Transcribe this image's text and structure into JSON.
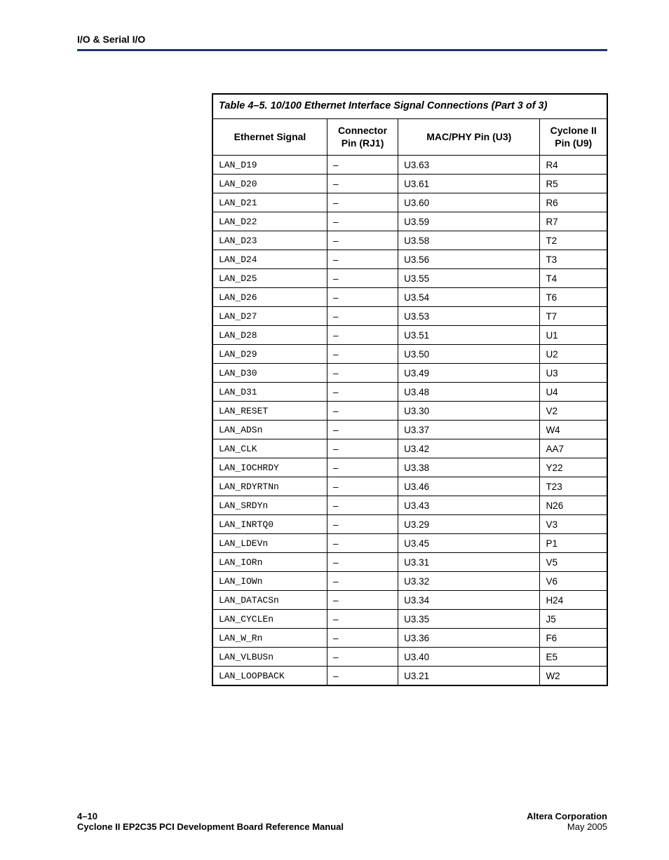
{
  "header": {
    "section": "I/O & Serial I/O"
  },
  "table": {
    "title": "Table 4–5. 10/100 Ethernet Interface Signal Connections  (Part 3 of 3)",
    "columns": {
      "c0": "Ethernet Signal",
      "c1": "Connector Pin (RJ1)",
      "c2": "MAC/PHY Pin (U3)",
      "c3": "Cyclone II Pin (U9)"
    },
    "widths": {
      "c0": "29%",
      "c1": "18%",
      "c2": "36%",
      "c3": "17%"
    },
    "rows": [
      {
        "sig": "LAN_D19",
        "conn": "–",
        "mac": "U3.63",
        "cyc": "R4"
      },
      {
        "sig": "LAN_D20",
        "conn": "–",
        "mac": "U3.61",
        "cyc": "R5"
      },
      {
        "sig": "LAN_D21",
        "conn": "–",
        "mac": "U3.60",
        "cyc": "R6"
      },
      {
        "sig": "LAN_D22",
        "conn": "–",
        "mac": "U3.59",
        "cyc": "R7"
      },
      {
        "sig": "LAN_D23",
        "conn": "–",
        "mac": "U3.58",
        "cyc": "T2"
      },
      {
        "sig": "LAN_D24",
        "conn": "–",
        "mac": "U3.56",
        "cyc": "T3"
      },
      {
        "sig": "LAN_D25",
        "conn": "–",
        "mac": "U3.55",
        "cyc": "T4"
      },
      {
        "sig": "LAN_D26",
        "conn": "–",
        "mac": "U3.54",
        "cyc": "T6"
      },
      {
        "sig": "LAN_D27",
        "conn": "–",
        "mac": "U3.53",
        "cyc": "T7"
      },
      {
        "sig": "LAN_D28",
        "conn": "–",
        "mac": "U3.51",
        "cyc": "U1"
      },
      {
        "sig": "LAN_D29",
        "conn": "–",
        "mac": "U3.50",
        "cyc": "U2"
      },
      {
        "sig": "LAN_D30",
        "conn": "–",
        "mac": "U3.49",
        "cyc": "U3"
      },
      {
        "sig": "LAN_D31",
        "conn": "–",
        "mac": "U3.48",
        "cyc": "U4"
      },
      {
        "sig": "LAN_RESET",
        "conn": "–",
        "mac": "U3.30",
        "cyc": "V2"
      },
      {
        "sig": "LAN_ADSn",
        "conn": "–",
        "mac": "U3.37",
        "cyc": "W4"
      },
      {
        "sig": "LAN_CLK",
        "conn": "–",
        "mac": "U3.42",
        "cyc": "AA7"
      },
      {
        "sig": "LAN_IOCHRDY",
        "conn": "–",
        "mac": "U3.38",
        "cyc": "Y22"
      },
      {
        "sig": "LAN_RDYRTNn",
        "conn": "–",
        "mac": "U3.46",
        "cyc": "T23"
      },
      {
        "sig": "LAN_SRDYn",
        "conn": "–",
        "mac": "U3.43",
        "cyc": "N26"
      },
      {
        "sig": "LAN_INRTQ0",
        "conn": "–",
        "mac": "U3.29",
        "cyc": "V3"
      },
      {
        "sig": "LAN_LDEVn",
        "conn": "–",
        "mac": "U3.45",
        "cyc": "P1"
      },
      {
        "sig": "LAN_IORn",
        "conn": "–",
        "mac": "U3.31",
        "cyc": "V5"
      },
      {
        "sig": "LAN_IOWn",
        "conn": "–",
        "mac": "U3.32",
        "cyc": "V6"
      },
      {
        "sig": "LAN_DATACSn",
        "conn": "–",
        "mac": "U3.34",
        "cyc": "H24"
      },
      {
        "sig": "LAN_CYCLEn",
        "conn": "–",
        "mac": "U3.35",
        "cyc": "J5"
      },
      {
        "sig": "LAN_W_Rn",
        "conn": "–",
        "mac": "U3.36",
        "cyc": "F6"
      },
      {
        "sig": "LAN_VLBUSn",
        "conn": "–",
        "mac": "U3.40",
        "cyc": "E5"
      },
      {
        "sig": "LAN_LOOPBACK",
        "conn": "–",
        "mac": "U3.21",
        "cyc": "W2"
      }
    ]
  },
  "footer": {
    "pageno": "4–10",
    "manual": "Cyclone II EP2C35 PCI Development Board Reference Manual",
    "corp": "Altera Corporation",
    "date": "May 2005"
  }
}
